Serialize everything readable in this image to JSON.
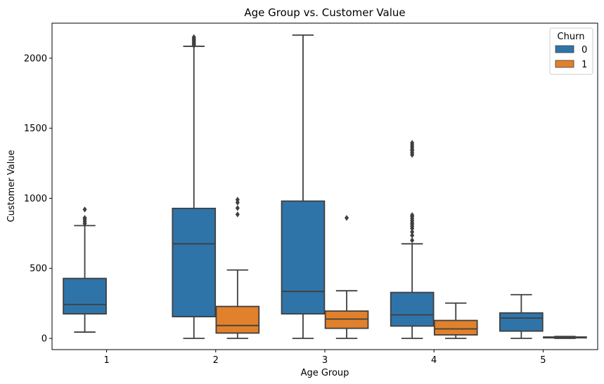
{
  "chart_data": {
    "type": "box",
    "title": "Age Group vs. Customer Value",
    "xlabel": "Age Group",
    "ylabel": "Customer Value",
    "categories": [
      "1",
      "2",
      "3",
      "4",
      "5"
    ],
    "ylim": [
      -80,
      2250
    ],
    "yticks": [
      0,
      500,
      1000,
      1500,
      2000
    ],
    "legend": {
      "title": "Churn",
      "placement": "top-right"
    },
    "series": [
      {
        "name": "0",
        "color": "#2f74a9",
        "boxes": [
          {
            "category": "1",
            "whisker_low": 45,
            "q1": 175,
            "median": 242,
            "q3": 428,
            "whisker_high": 805,
            "outliers": [
              820,
              835,
              850,
              860,
              920
            ]
          },
          {
            "category": "2",
            "whisker_low": 0,
            "q1": 155,
            "median": 675,
            "q3": 928,
            "whisker_high": 2085,
            "outliers": [
              2090,
              2100,
              2110,
              2120,
              2130,
              2140,
              2150
            ]
          },
          {
            "category": "3",
            "whisker_low": 0,
            "q1": 175,
            "median": 335,
            "q3": 980,
            "whisker_high": 2165,
            "outliers": []
          },
          {
            "category": "4",
            "whisker_low": 0,
            "q1": 88,
            "median": 168,
            "q3": 328,
            "whisker_high": 675,
            "outliers": [
              700,
              735,
              760,
              785,
              800,
              815,
              825,
              840,
              855,
              870,
              880,
              1310,
              1325,
              1340,
              1350,
              1365,
              1380,
              1395
            ]
          },
          {
            "category": "5",
            "whisker_low": 0,
            "q1": 52,
            "median": 145,
            "q3": 182,
            "whisker_high": 312,
            "outliers": []
          }
        ]
      },
      {
        "name": "1",
        "color": "#e1812c",
        "boxes": [
          {
            "category": "2",
            "whisker_low": 0,
            "q1": 38,
            "median": 92,
            "q3": 228,
            "whisker_high": 488,
            "outliers": [
              885,
              930,
              970,
              990
            ]
          },
          {
            "category": "3",
            "whisker_low": 0,
            "q1": 72,
            "median": 138,
            "q3": 195,
            "whisker_high": 340,
            "outliers": [
              860
            ]
          },
          {
            "category": "4",
            "whisker_low": 0,
            "q1": 25,
            "median": 68,
            "q3": 128,
            "whisker_high": 252,
            "outliers": []
          },
          {
            "category": "5",
            "whisker_low": 0,
            "q1": 4,
            "median": 7,
            "q3": 10,
            "whisker_high": 14,
            "outliers": []
          }
        ]
      }
    ]
  }
}
